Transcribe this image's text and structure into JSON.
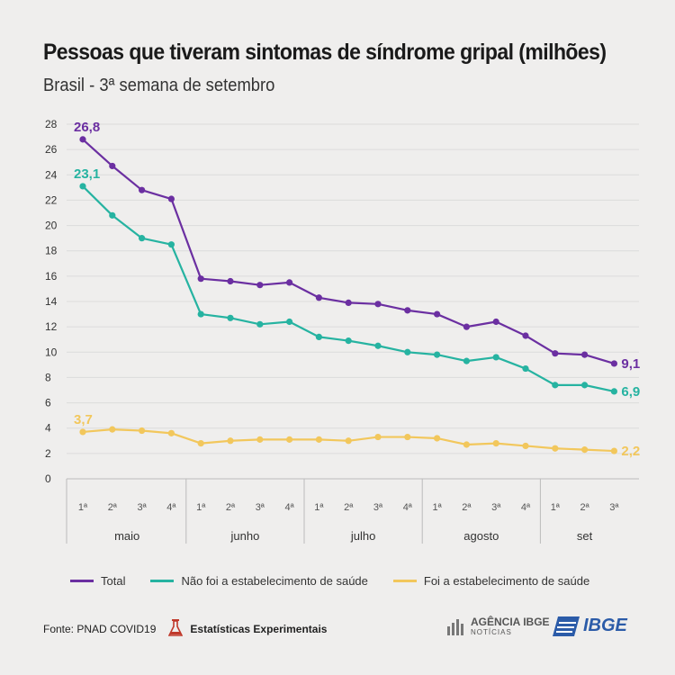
{
  "title": "Pessoas que tiveram sintomas de síndrome gripal (milhões)",
  "subtitle": "Brasil - 3ª semana de setembro",
  "chart_data": {
    "type": "line",
    "x": [
      "1ª",
      "2ª",
      "3ª",
      "4ª",
      "1ª",
      "2ª",
      "3ª",
      "4ª",
      "1ª",
      "2ª",
      "3ª",
      "4ª",
      "1ª",
      "2ª",
      "3ª",
      "4ª",
      "1ª",
      "2ª",
      "3ª"
    ],
    "months": [
      {
        "label": "maio",
        "start": 0,
        "end": 3
      },
      {
        "label": "junho",
        "start": 4,
        "end": 7
      },
      {
        "label": "julho",
        "start": 8,
        "end": 11
      },
      {
        "label": "agosto",
        "start": 12,
        "end": 15
      },
      {
        "label": "set",
        "start": 16,
        "end": 18
      }
    ],
    "ylim": [
      0,
      28
    ],
    "yticks": [
      0,
      2,
      4,
      6,
      8,
      10,
      12,
      14,
      16,
      18,
      20,
      22,
      24,
      26,
      28
    ],
    "series": [
      {
        "name": "Total",
        "color": "#6b2fa1",
        "values": [
          26.8,
          24.7,
          22.8,
          22.1,
          15.8,
          15.6,
          15.3,
          15.5,
          14.3,
          13.9,
          13.8,
          13.3,
          13.0,
          12.0,
          12.4,
          11.3,
          9.9,
          9.8,
          9.1
        ],
        "first_label": "26,8",
        "last_label": "9,1"
      },
      {
        "name": "Não foi a estabelecimento de saúde",
        "color": "#26b3a1",
        "values": [
          23.1,
          20.8,
          19.0,
          18.5,
          13.0,
          12.7,
          12.2,
          12.4,
          11.2,
          10.9,
          10.5,
          10.0,
          9.8,
          9.3,
          9.6,
          8.7,
          7.4,
          7.4,
          6.9
        ],
        "first_label": "23,1",
        "last_label": "6,9"
      },
      {
        "name": "Foi a estabelecimento de saúde",
        "color": "#f2c75c",
        "values": [
          3.7,
          3.9,
          3.8,
          3.6,
          2.8,
          3.0,
          3.1,
          3.1,
          3.1,
          3.0,
          3.3,
          3.3,
          3.2,
          2.7,
          2.8,
          2.6,
          2.4,
          2.3,
          2.2
        ],
        "first_label": "3,7",
        "last_label": "2,2"
      }
    ]
  },
  "footer": {
    "source": "Fonte: PNAD COVID19",
    "experimental": "Estatísticas Experimentais",
    "agencia_main": "AGÊNCIA IBGE",
    "agencia_sub": "NOTÍCIAS",
    "ibge": "IBGE"
  }
}
